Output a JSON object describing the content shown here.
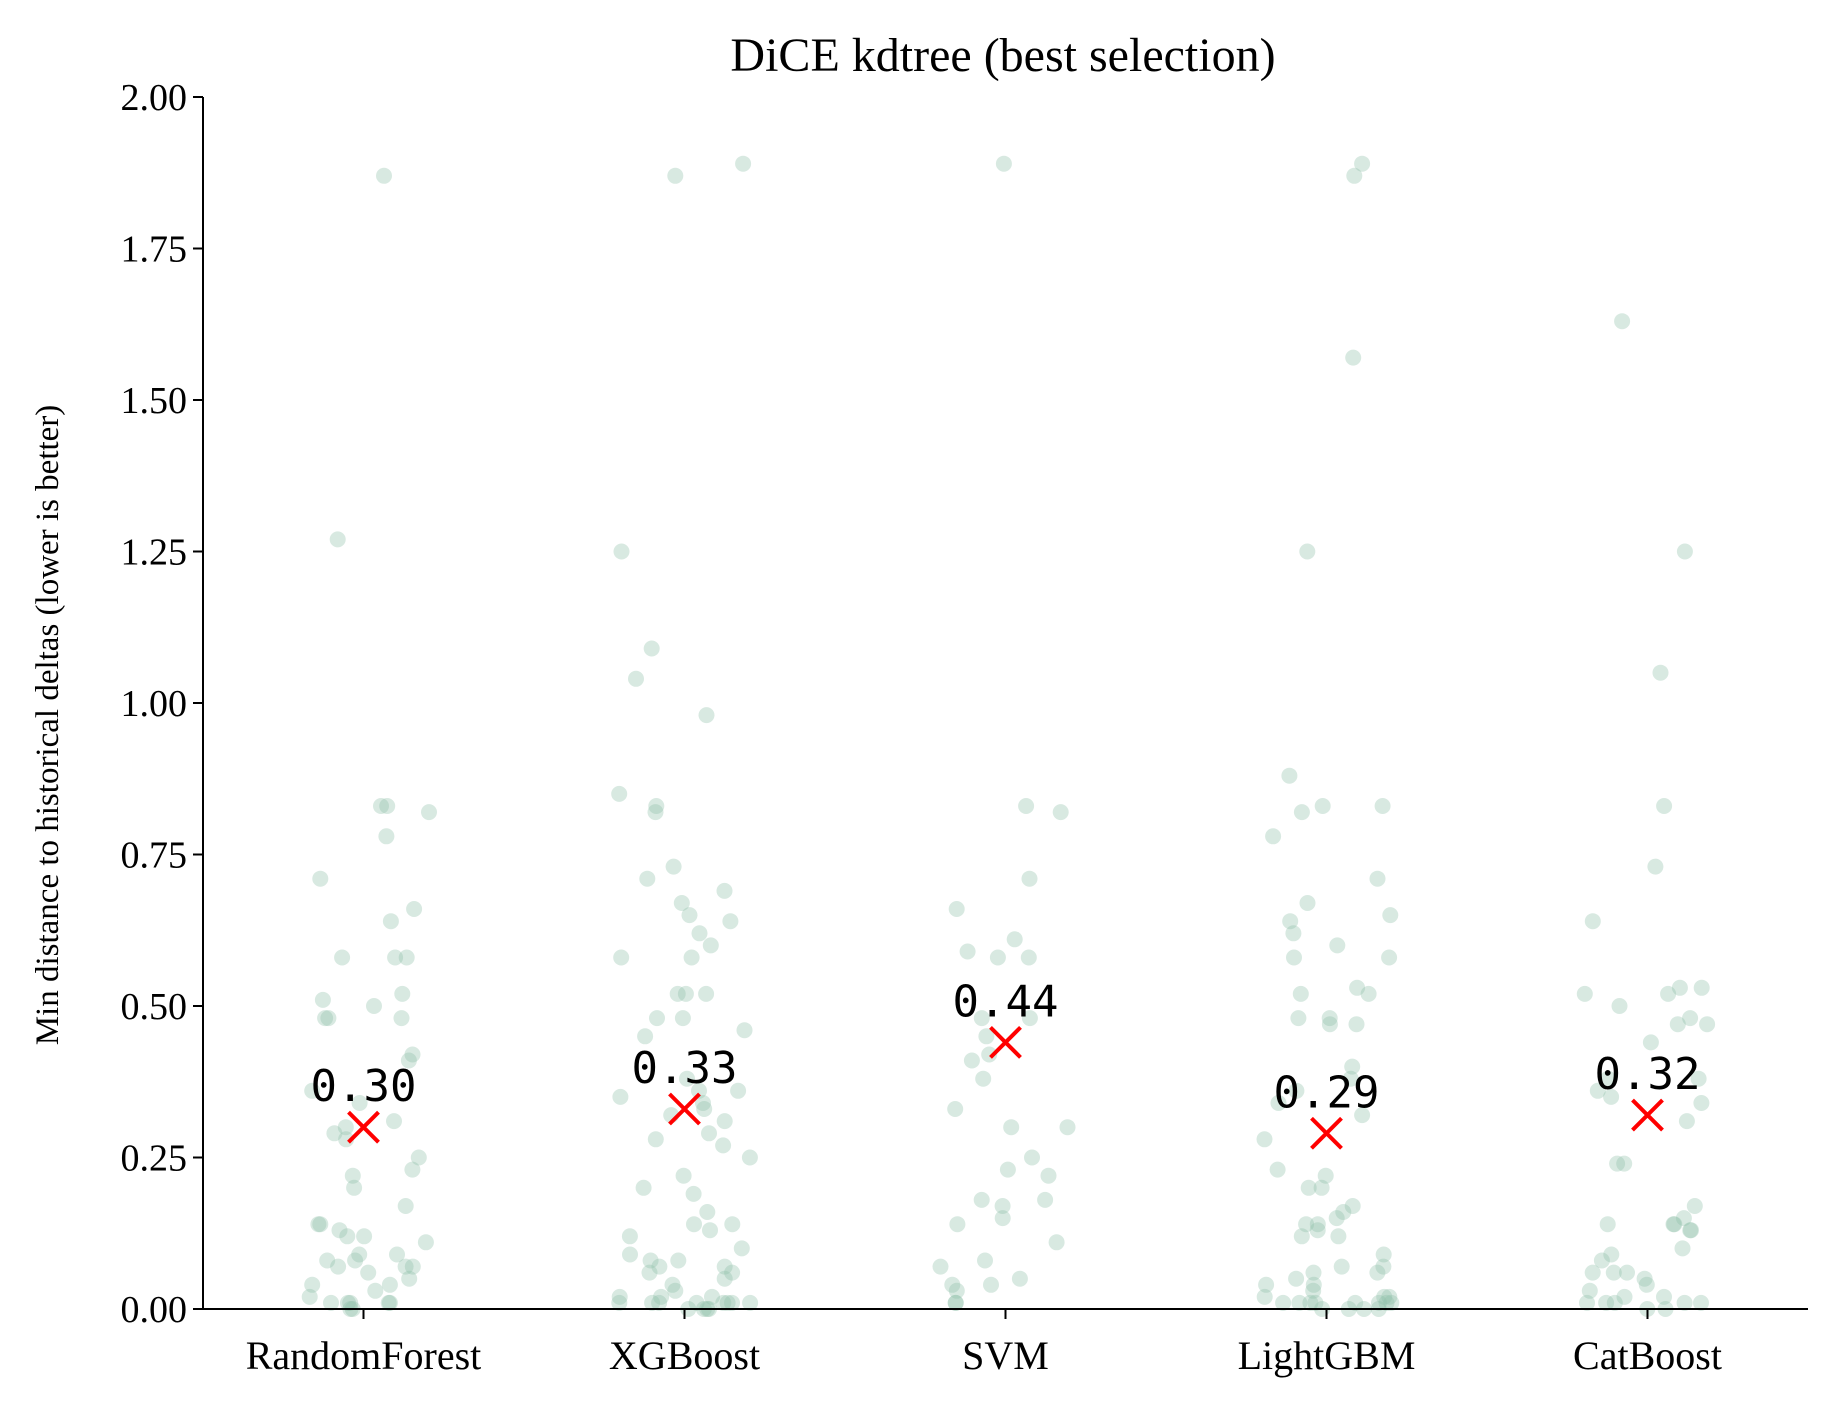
{
  "chart_data": {
    "type": "scatter",
    "title": "DiCE kdtree (best selection)",
    "xlabel": "",
    "ylabel": "Min distance to historical deltas (lower is better)",
    "ylim": [
      0,
      2
    ],
    "yticks": [
      "0.00",
      "0.25",
      "0.50",
      "0.75",
      "1.00",
      "1.25",
      "1.50",
      "1.75",
      "2.00"
    ],
    "categories": [
      "RandomForest",
      "XGBoost",
      "SVM",
      "LightGBM",
      "CatBoost"
    ],
    "grid": false,
    "point_color": "#8fbfa8",
    "marker_color": "#ff0000",
    "means": [
      {
        "category": "RandomForest",
        "value": 0.3,
        "label": "0.30"
      },
      {
        "category": "XGBoost",
        "value": 0.33,
        "label": "0.33"
      },
      {
        "category": "SVM",
        "value": 0.44,
        "label": "0.44"
      },
      {
        "category": "LightGBM",
        "value": 0.29,
        "label": "0.29"
      },
      {
        "category": "CatBoost",
        "value": 0.32,
        "label": "0.32"
      }
    ],
    "points": [
      {
        "category": "RandomForest",
        "values": [
          1.87,
          1.27,
          0.83,
          0.82,
          0.83,
          0.78,
          0.71,
          0.66,
          0.64,
          0.58,
          0.58,
          0.58,
          0.52,
          0.51,
          0.5,
          0.48,
          0.48,
          0.48,
          0.42,
          0.41,
          0.36,
          0.34,
          0.31,
          0.3,
          0.29,
          0.28,
          0.25,
          0.23,
          0.22,
          0.2,
          0.17,
          0.14,
          0.14,
          0.13,
          0.12,
          0.12,
          0.11,
          0.09,
          0.09,
          0.08,
          0.08,
          0.07,
          0.07,
          0.07,
          0.06,
          0.05,
          0.04,
          0.04,
          0.03,
          0.02,
          0.01,
          0.01,
          0.01,
          0.01,
          0.01,
          0.0,
          0.0
        ]
      },
      {
        "category": "XGBoost",
        "values": [
          1.89,
          1.87,
          1.25,
          1.09,
          1.04,
          0.98,
          0.85,
          0.83,
          0.82,
          0.73,
          0.71,
          0.69,
          0.67,
          0.65,
          0.64,
          0.62,
          0.6,
          0.58,
          0.58,
          0.52,
          0.52,
          0.52,
          0.48,
          0.48,
          0.46,
          0.45,
          0.38,
          0.36,
          0.36,
          0.35,
          0.34,
          0.33,
          0.32,
          0.31,
          0.29,
          0.28,
          0.27,
          0.25,
          0.22,
          0.2,
          0.19,
          0.16,
          0.14,
          0.14,
          0.13,
          0.12,
          0.1,
          0.09,
          0.08,
          0.08,
          0.07,
          0.07,
          0.06,
          0.06,
          0.05,
          0.04,
          0.03,
          0.02,
          0.02,
          0.02,
          0.01,
          0.01,
          0.01,
          0.01,
          0.01,
          0.01,
          0.01,
          0.01,
          0.0,
          0.0,
          0.0,
          0.0
        ]
      },
      {
        "category": "SVM",
        "values": [
          1.89,
          0.83,
          0.82,
          0.71,
          0.66,
          0.61,
          0.59,
          0.58,
          0.58,
          0.48,
          0.48,
          0.45,
          0.42,
          0.41,
          0.38,
          0.33,
          0.3,
          0.3,
          0.25,
          0.23,
          0.22,
          0.18,
          0.18,
          0.17,
          0.15,
          0.14,
          0.11,
          0.08,
          0.07,
          0.05,
          0.04,
          0.04,
          0.03,
          0.01,
          0.01
        ]
      },
      {
        "category": "LightGBM",
        "values": [
          1.89,
          1.87,
          1.57,
          1.25,
          0.88,
          0.83,
          0.83,
          0.82,
          0.78,
          0.71,
          0.67,
          0.65,
          0.64,
          0.62,
          0.6,
          0.58,
          0.58,
          0.53,
          0.52,
          0.52,
          0.48,
          0.48,
          0.47,
          0.47,
          0.4,
          0.38,
          0.36,
          0.34,
          0.32,
          0.28,
          0.23,
          0.22,
          0.2,
          0.2,
          0.17,
          0.16,
          0.15,
          0.14,
          0.14,
          0.13,
          0.12,
          0.12,
          0.09,
          0.07,
          0.07,
          0.06,
          0.06,
          0.05,
          0.04,
          0.04,
          0.03,
          0.02,
          0.02,
          0.02,
          0.01,
          0.01,
          0.01,
          0.01,
          0.01,
          0.01,
          0.01,
          0.01,
          0.0,
          0.0,
          0.0,
          0.0
        ]
      },
      {
        "category": "CatBoost",
        "values": [
          1.63,
          1.25,
          1.05,
          0.83,
          0.73,
          0.64,
          0.53,
          0.53,
          0.52,
          0.52,
          0.5,
          0.48,
          0.47,
          0.47,
          0.44,
          0.38,
          0.38,
          0.36,
          0.35,
          0.34,
          0.31,
          0.24,
          0.24,
          0.17,
          0.15,
          0.14,
          0.14,
          0.14,
          0.13,
          0.13,
          0.1,
          0.09,
          0.08,
          0.06,
          0.06,
          0.06,
          0.05,
          0.04,
          0.03,
          0.02,
          0.02,
          0.01,
          0.01,
          0.01,
          0.01,
          0.01,
          0.0,
          0.0
        ]
      }
    ]
  }
}
